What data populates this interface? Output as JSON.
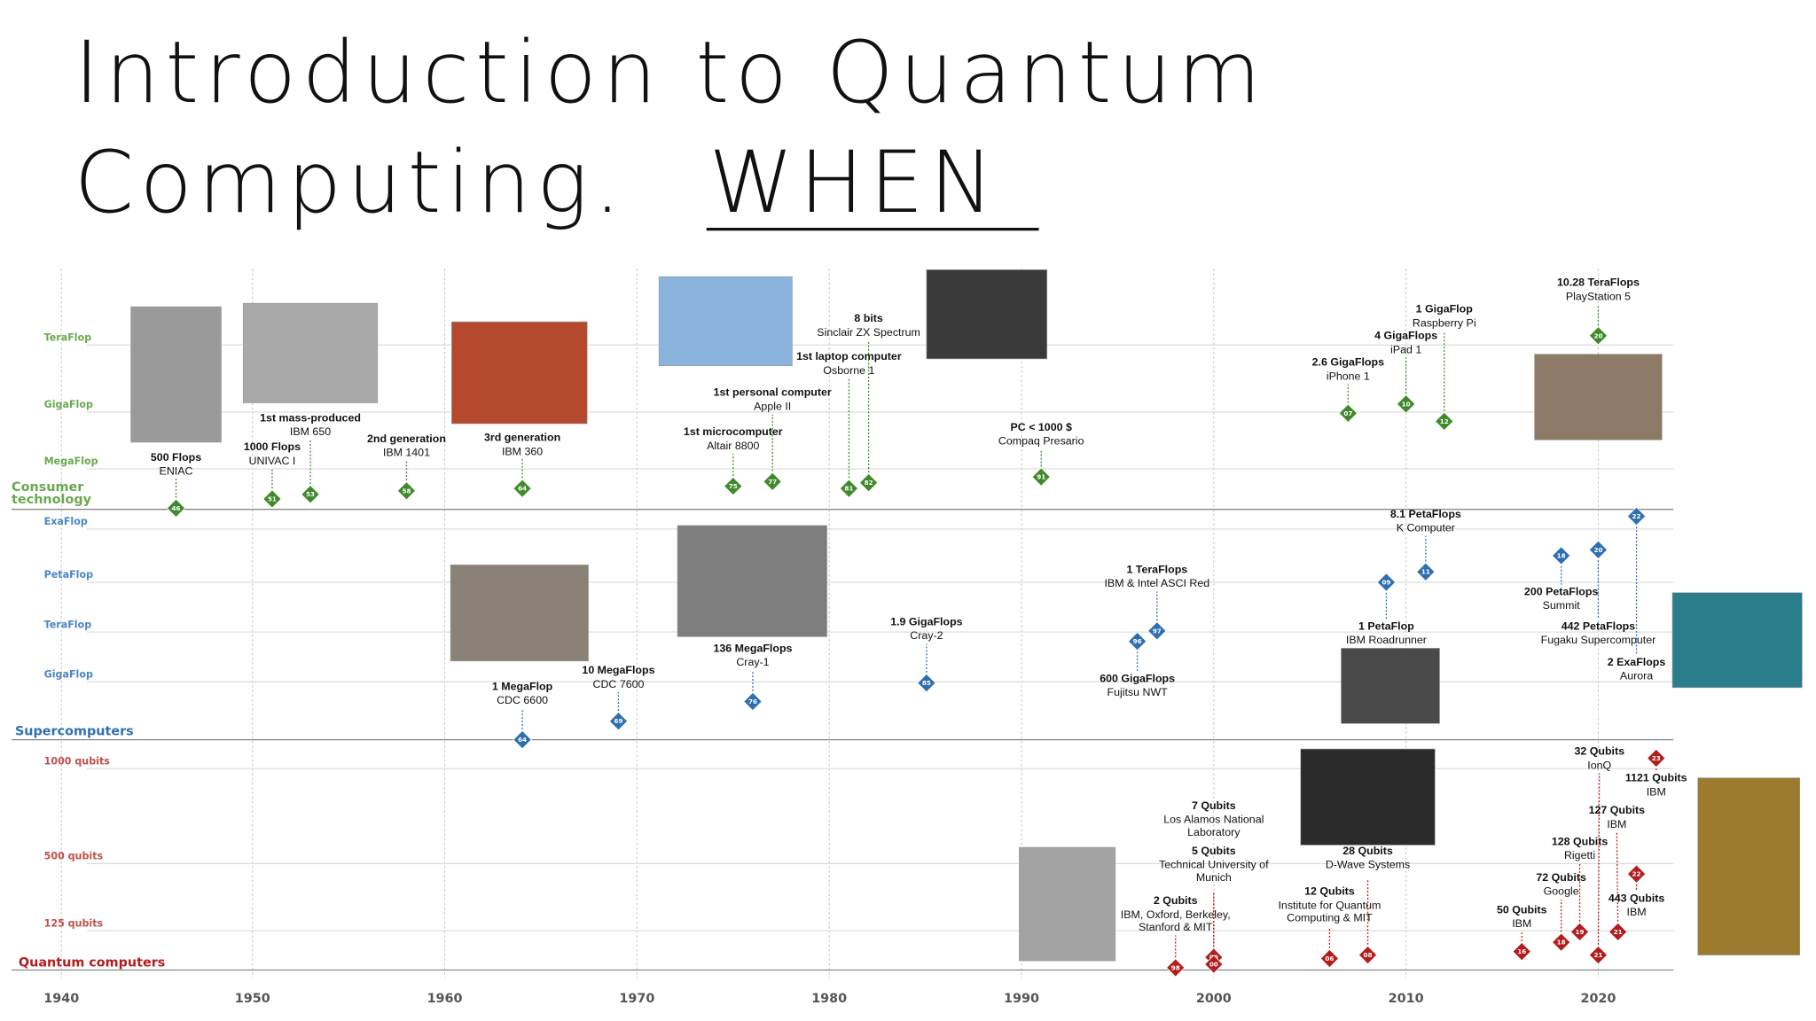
{
  "title": {
    "line1": "Introduction to Quantum",
    "line2": "Computing.",
    "emphasis": "WHEN"
  },
  "years": [
    "1940",
    "1950",
    "1960",
    "1970",
    "1980",
    "1990",
    "2000",
    "2010",
    "2020"
  ],
  "lanes": [
    {
      "name": "Consumer technology",
      "levels": [
        "TeraFlop",
        "GigaFlop",
        "MegaFlop"
      ],
      "events": [
        {
          "year": "46",
          "title": "500 Flops",
          "subtitle": "ENIAC"
        },
        {
          "year": "51",
          "title": "1000 Flops",
          "subtitle": "UNIVAC I"
        },
        {
          "year": "53",
          "title": "1st mass-produced",
          "subtitle": "IBM 650"
        },
        {
          "year": "58",
          "title": "2nd generation",
          "subtitle": "IBM 1401"
        },
        {
          "year": "64",
          "title": "3rd generation",
          "subtitle": "IBM 360"
        },
        {
          "year": "75",
          "title": "1st microcomputer",
          "subtitle": "Altair 8800"
        },
        {
          "year": "77",
          "title": "1st personal computer",
          "subtitle": "Apple II"
        },
        {
          "year": "81",
          "title": "1st laptop computer",
          "subtitle": "Osborne 1"
        },
        {
          "year": "82",
          "title": "8 bits",
          "subtitle": "Sinclair ZX Spectrum"
        },
        {
          "year": "91",
          "title": "PC < 1000 $",
          "subtitle": "Compaq Presario"
        },
        {
          "year": "07",
          "title": "2.6 GigaFlops",
          "subtitle": "iPhone 1"
        },
        {
          "year": "10",
          "title": "4 GigaFlops",
          "subtitle": "iPad 1"
        },
        {
          "year": "12",
          "title": "1 GigaFlop",
          "subtitle": "Raspberry Pi"
        },
        {
          "year": "20",
          "title": "10.28 TeraFlops",
          "subtitle": "PlayStation 5"
        }
      ]
    },
    {
      "name": "Supercomputers",
      "levels": [
        "ExaFlop",
        "PetaFlop",
        "TeraFlop",
        "GigaFlop"
      ],
      "events": [
        {
          "year": "64",
          "title": "1 MegaFlop",
          "subtitle": "CDC 6600"
        },
        {
          "year": "69",
          "title": "10 MegaFlops",
          "subtitle": "CDC 7600"
        },
        {
          "year": "76",
          "title": "136 MegaFlops",
          "subtitle": "Cray-1"
        },
        {
          "year": "85",
          "title": "1.9 GigaFlops",
          "subtitle": "Cray-2"
        },
        {
          "year": "96",
          "title": "600 GigaFlops",
          "subtitle": "Fujitsu NWT"
        },
        {
          "year": "97",
          "title": "1 TeraFlops",
          "subtitle": "IBM & Intel ASCI Red"
        },
        {
          "year": "09",
          "title": "1 PetaFlop",
          "subtitle": "IBM Roadrunner"
        },
        {
          "year": "11",
          "title": "8.1 PetaFlops",
          "subtitle": "K Computer"
        },
        {
          "year": "18",
          "title": "200 PetaFlops",
          "subtitle": "Summit"
        },
        {
          "year": "20",
          "title": "442 PetaFlops",
          "subtitle": "Fugaku Supercomputer"
        },
        {
          "year": "22",
          "title": "2 ExaFlops",
          "subtitle": "Aurora"
        }
      ]
    },
    {
      "name": "Quantum computers",
      "levels": [
        "1000 qubits",
        "500 qubits",
        "125 qubits"
      ],
      "events": [
        {
          "year": "98",
          "title": "2 Qubits",
          "subtitle": "IBM, Oxford, Berkeley, Stanford & MIT"
        },
        {
          "year": "00",
          "title": "5 Qubits",
          "subtitle": "Technical University of Munich"
        },
        {
          "year": "00",
          "title": "7 Qubits",
          "subtitle": "Los Alamos National Laboratory"
        },
        {
          "year": "06",
          "title": "12 Qubits",
          "subtitle": "Institute for Quantum Computing & MIT"
        },
        {
          "year": "08",
          "title": "28 Qubits",
          "subtitle": "D-Wave Systems"
        },
        {
          "year": "16",
          "title": "50 Qubits",
          "subtitle": "IBM"
        },
        {
          "year": "18",
          "title": "72 Qubits",
          "subtitle": "Google"
        },
        {
          "year": "19",
          "title": "128 Qubits",
          "subtitle": "Rigetti"
        },
        {
          "year": "21",
          "title": "32 Qubits",
          "subtitle": "IonQ"
        },
        {
          "year": "21",
          "title": "127 Qubits",
          "subtitle": "IBM"
        },
        {
          "year": "22",
          "title": "443 Qubits",
          "subtitle": "IBM"
        },
        {
          "year": "23",
          "title": "1121 Qubits",
          "subtitle": "IBM"
        }
      ]
    }
  ]
}
